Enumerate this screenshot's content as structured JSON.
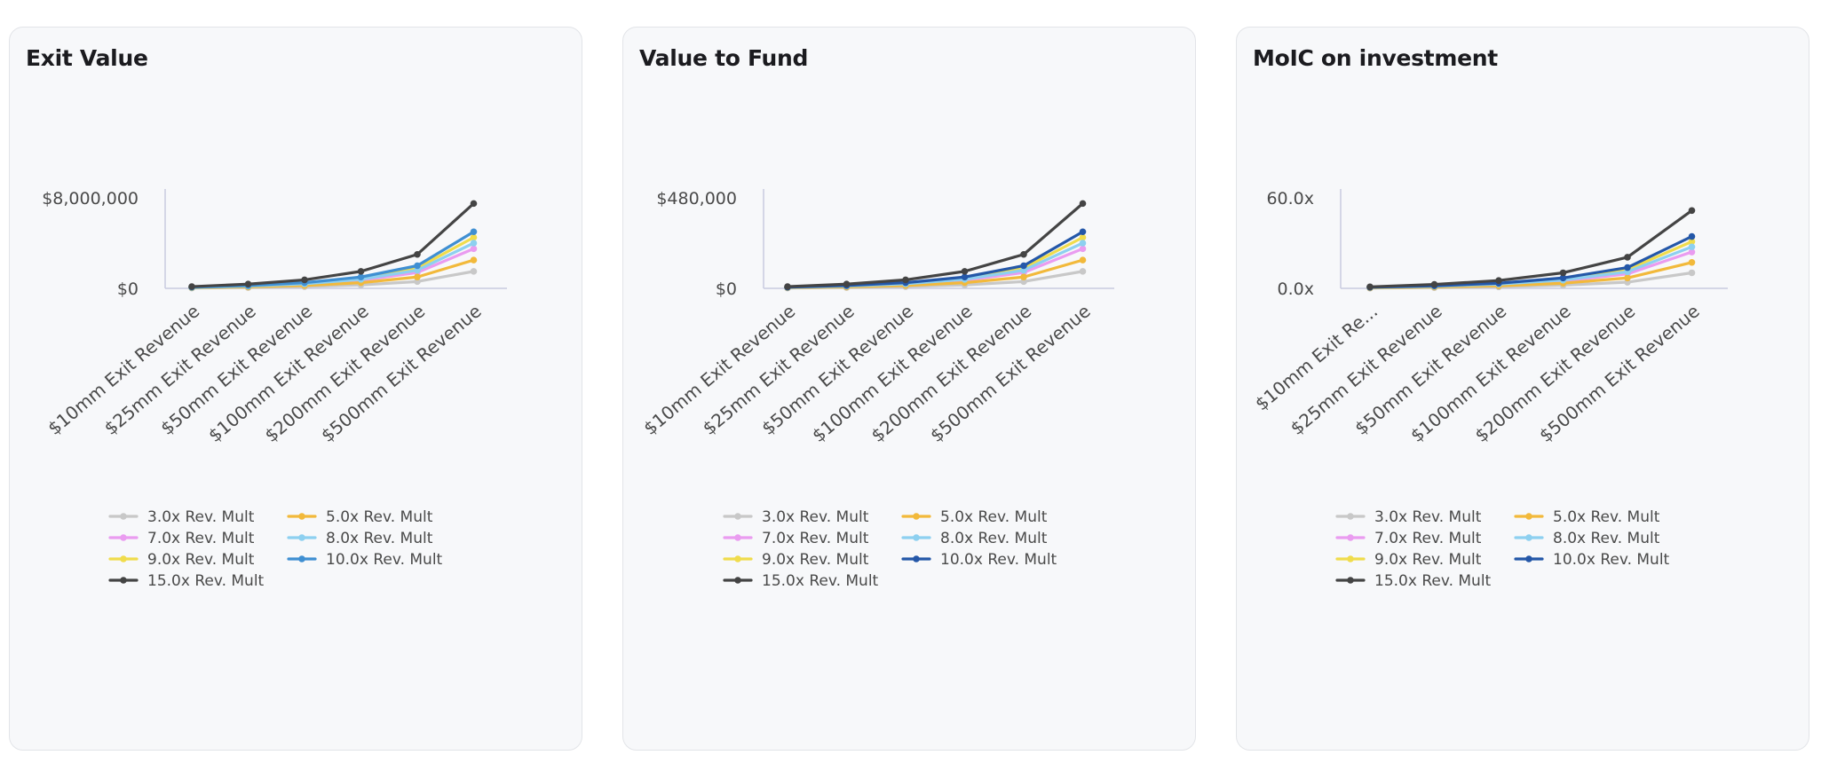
{
  "cards": [
    {
      "title": "Exit Value",
      "chart_data": {
        "type": "line",
        "title": "Exit Value",
        "x": [
          "$10mm Exit Revenue",
          "$25mm Exit Revenue",
          "$50mm Exit Revenue",
          "$100mm Exit Revenue",
          "$200mm Exit Revenue",
          "$500mm Exit Revenue"
        ],
        "x_display": [
          "$10mm Exit Revenue",
          "$25mm Exit Revenue",
          "$50mm Exit Revenue",
          "$100mm Exit Revenue",
          "$200mm Exit Revenue",
          "$500mm Exit Revenue"
        ],
        "y_ticks": [
          "$8,000,000",
          "$0"
        ],
        "ylim": [
          0,
          8000000
        ],
        "legend_position": "bottom",
        "series": [
          {
            "name": "3.0x Rev. Mult",
            "color": "#c8c8c8",
            "values": [
              30000,
              75000,
              150000,
              300000,
              600000,
              1500000
            ]
          },
          {
            "name": "5.0x Rev. Mult",
            "color": "#f2b93b",
            "values": [
              50000,
              125000,
              250000,
              500000,
              1000000,
              2500000
            ]
          },
          {
            "name": "7.0x Rev. Mult",
            "color": "#ea9cf0",
            "values": [
              70000,
              175000,
              350000,
              700000,
              1400000,
              3500000
            ]
          },
          {
            "name": "8.0x Rev. Mult",
            "color": "#8dd0f0",
            "values": [
              80000,
              200000,
              400000,
              800000,
              1600000,
              4000000
            ]
          },
          {
            "name": "9.0x Rev. Mult",
            "color": "#f0dc4c",
            "values": [
              90000,
              225000,
              450000,
              900000,
              1800000,
              4500000
            ]
          },
          {
            "name": "10.0x Rev. Mult",
            "color": "#3f8fd2",
            "values": [
              100000,
              250000,
              500000,
              1000000,
              2000000,
              5000000
            ]
          },
          {
            "name": "15.0x Rev. Mult",
            "color": "#444444",
            "values": [
              150000,
              375000,
              750000,
              1500000,
              3000000,
              7500000
            ]
          }
        ]
      }
    },
    {
      "title": "Value to Fund",
      "chart_data": {
        "type": "line",
        "title": "Value to Fund",
        "x": [
          "$10mm Exit Revenue",
          "$25mm Exit Revenue",
          "$50mm Exit Revenue",
          "$100mm Exit Revenue",
          "$200mm Exit Revenue",
          "$500mm Exit Revenue"
        ],
        "x_display": [
          "$10mm Exit Revenue",
          "$25mm Exit Revenue",
          "$50mm Exit Revenue",
          "$100mm Exit Revenue",
          "$200mm Exit Revenue",
          "$500mm Exit Revenue"
        ],
        "y_ticks": [
          "$480,000",
          "$0"
        ],
        "ylim": [
          0,
          480000
        ],
        "legend_position": "bottom",
        "series": [
          {
            "name": "3.0x Rev. Mult",
            "color": "#c8c8c8",
            "values": [
              1800,
              4500,
              9000,
              18000,
              36000,
              90000
            ]
          },
          {
            "name": "5.0x Rev. Mult",
            "color": "#f2b93b",
            "values": [
              3000,
              7500,
              15000,
              30000,
              60000,
              150000
            ]
          },
          {
            "name": "7.0x Rev. Mult",
            "color": "#ea9cf0",
            "values": [
              4200,
              10500,
              21000,
              42000,
              84000,
              210000
            ]
          },
          {
            "name": "8.0x Rev. Mult",
            "color": "#8dd0f0",
            "values": [
              4800,
              12000,
              24000,
              48000,
              96000,
              240000
            ]
          },
          {
            "name": "9.0x Rev. Mult",
            "color": "#f0dc4c",
            "values": [
              5400,
              13500,
              27000,
              54000,
              108000,
              270000
            ]
          },
          {
            "name": "10.0x Rev. Mult",
            "color": "#2457a8",
            "values": [
              6000,
              15000,
              30000,
              60000,
              120000,
              300000
            ]
          },
          {
            "name": "15.0x Rev. Mult",
            "color": "#444444",
            "values": [
              9000,
              22500,
              45000,
              90000,
              180000,
              450000
            ]
          }
        ]
      }
    },
    {
      "title": "MoIC on investment",
      "chart_data": {
        "type": "line",
        "title": "MoIC on investment",
        "x": [
          "$10mm Exit Revenue",
          "$25mm Exit Revenue",
          "$50mm Exit Revenue",
          "$100mm Exit Revenue",
          "$200mm Exit Revenue",
          "$500mm Exit Revenue"
        ],
        "x_display": [
          "$10mm Exit Re...",
          "$25mm Exit Revenue",
          "$50mm Exit Revenue",
          "$100mm Exit Revenue",
          "$200mm Exit Revenue",
          "$500mm Exit Revenue"
        ],
        "y_ticks": [
          "60.0x",
          "0.0x"
        ],
        "ylim": [
          0,
          60
        ],
        "legend_position": "bottom",
        "series": [
          {
            "name": "3.0x Rev. Mult",
            "color": "#c8c8c8",
            "values": [
              0.2,
              0.5,
              1.0,
              2.1,
              4.1,
              10.3
            ]
          },
          {
            "name": "5.0x Rev. Mult",
            "color": "#f2b93b",
            "values": [
              0.3,
              0.9,
              1.7,
              3.4,
              6.9,
              17.2
            ]
          },
          {
            "name": "7.0x Rev. Mult",
            "color": "#ea9cf0",
            "values": [
              0.5,
              1.2,
              2.4,
              4.8,
              9.6,
              24.1
            ]
          },
          {
            "name": "8.0x Rev. Mult",
            "color": "#8dd0f0",
            "values": [
              0.6,
              1.4,
              2.8,
              5.5,
              11.0,
              27.5
            ]
          },
          {
            "name": "9.0x Rev. Mult",
            "color": "#f0dc4c",
            "values": [
              0.6,
              1.5,
              3.1,
              6.2,
              12.4,
              31.0
            ]
          },
          {
            "name": "10.0x Rev. Mult",
            "color": "#2457a8",
            "values": [
              0.7,
              1.7,
              3.4,
              6.9,
              13.8,
              34.4
            ]
          },
          {
            "name": "15.0x Rev. Mult",
            "color": "#444444",
            "values": [
              1.0,
              2.6,
              5.2,
              10.3,
              20.6,
              51.6
            ]
          }
        ]
      }
    }
  ]
}
